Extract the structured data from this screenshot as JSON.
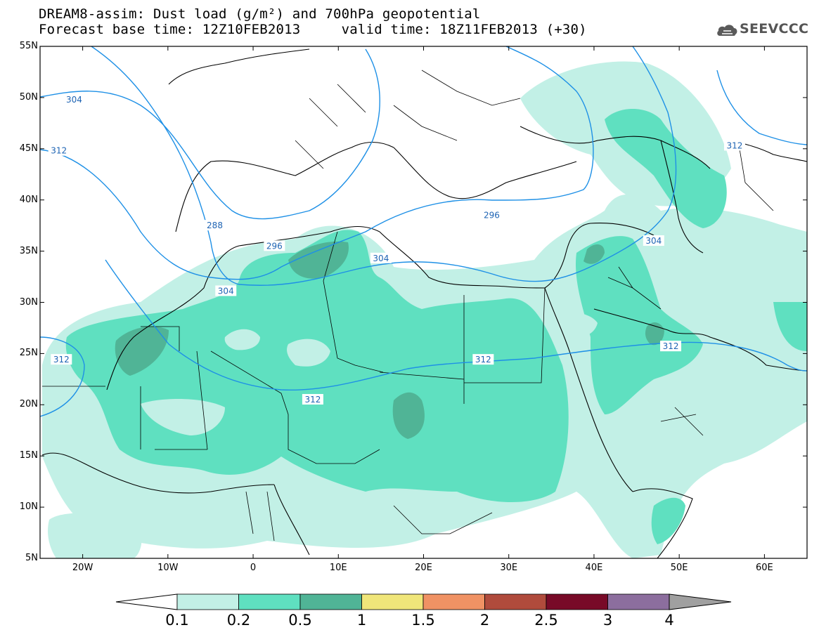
{
  "title": {
    "line1": "DREAM8-assim: Dust load (g/m²) and 700hPa geopotential",
    "line2": "Forecast base time: 12Z10FEB2013     valid time: 18Z11FEB2013 (+30)"
  },
  "logo": {
    "text": "SEEVCCC",
    "icon": "cloud-logo-icon"
  },
  "map": {
    "lon_range": [
      -25,
      65
    ],
    "lat_range": [
      5,
      55
    ],
    "lat_ticks": [
      "55N",
      "50N",
      "45N",
      "40N",
      "35N",
      "30N",
      "25N",
      "20N",
      "15N",
      "10N",
      "5N"
    ],
    "lon_ticks": [
      "20W",
      "10W",
      "0",
      "10E",
      "20E",
      "30E",
      "40E",
      "50E",
      "60E"
    ],
    "contour_labels": [
      "304",
      "312",
      "288",
      "296",
      "304",
      "296",
      "304",
      "304",
      "312",
      "312",
      "312",
      "312"
    ]
  },
  "colorbar": {
    "labels": [
      "0.1",
      "0.2",
      "0.5",
      "1",
      "1.5",
      "2",
      "2.5",
      "3",
      "4"
    ],
    "colors": [
      "#ffffff",
      "#c2f0e6",
      "#5fe0c0",
      "#50b496",
      "#f0e67a",
      "#f09264",
      "#b04b3c",
      "#780a28",
      "#8c6e9e",
      "#a0a0a0"
    ]
  }
}
